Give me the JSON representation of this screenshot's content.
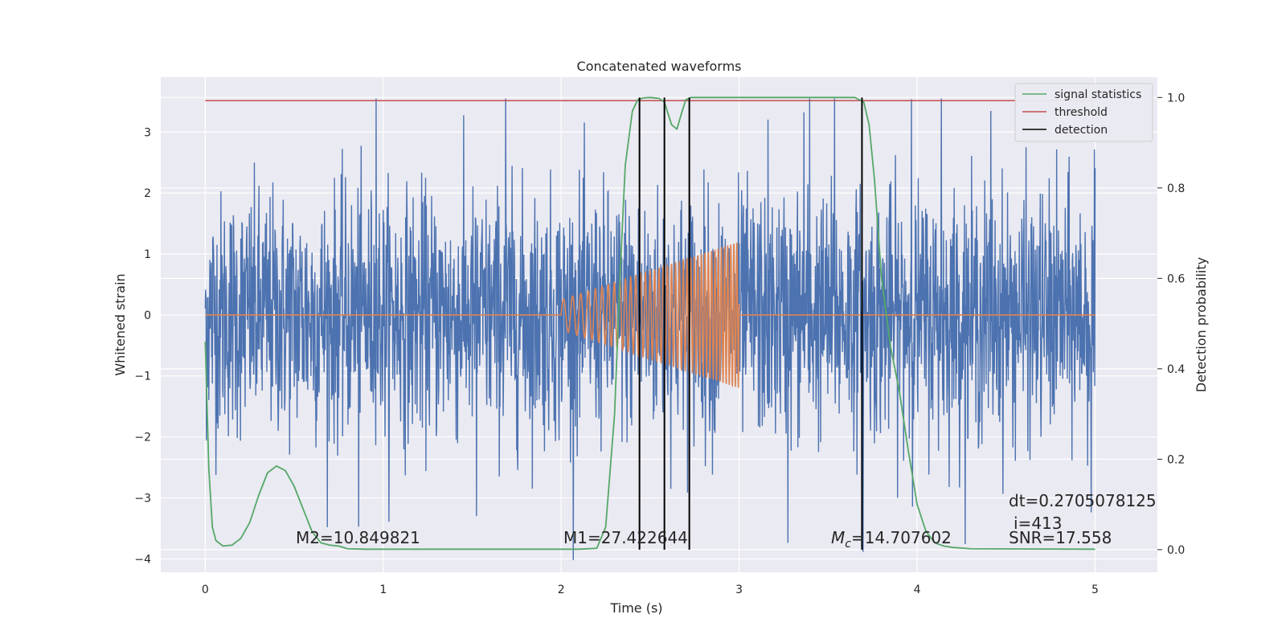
{
  "chart_data": {
    "type": "line",
    "title": "Concatenated waveforms",
    "xlabel": "Time (s)",
    "ylabel": "Whitened strain",
    "y2label": "Detection probability",
    "xlim": [
      -0.25,
      5.35
    ],
    "ylim": [
      -4.22,
      3.9
    ],
    "y2lim": [
      -0.05,
      1.045
    ],
    "xticks": [
      0,
      1,
      2,
      3,
      4,
      5
    ],
    "yticks": [
      -4,
      -3,
      -2,
      -1,
      0,
      1,
      2,
      3
    ],
    "y2ticks": [
      0.0,
      0.2,
      0.4,
      0.6,
      0.8,
      1.0
    ],
    "grid": true,
    "legend_position": "top-right",
    "colors": {
      "noise": "#4c72b0",
      "waveform": "#dd8452",
      "signal_statistics": "#55a868",
      "threshold": "#c44e52",
      "detection": "#000000",
      "plot_bg": "#eaeaf2"
    },
    "series": [
      {
        "name": "signal statistics",
        "axis": "right",
        "x": [
          0.0,
          0.02,
          0.04,
          0.06,
          0.1,
          0.15,
          0.2,
          0.25,
          0.3,
          0.35,
          0.4,
          0.45,
          0.5,
          0.55,
          0.6,
          0.65,
          0.7,
          0.75,
          0.8,
          0.9,
          1.0,
          1.5,
          2.0,
          2.1,
          2.2,
          2.25,
          2.3,
          2.33,
          2.36,
          2.4,
          2.43,
          2.46,
          2.5,
          2.55,
          2.58,
          2.62,
          2.65,
          2.68,
          2.7,
          2.73,
          2.76,
          2.8,
          3.0,
          3.5,
          3.65,
          3.7,
          3.73,
          3.76,
          3.8,
          3.85,
          3.9,
          3.95,
          4.0,
          4.05,
          4.1,
          4.15,
          4.2,
          4.3,
          5.0
        ],
        "y": [
          0.46,
          0.18,
          0.05,
          0.02,
          0.008,
          0.01,
          0.025,
          0.06,
          0.12,
          0.17,
          0.185,
          0.175,
          0.14,
          0.09,
          0.04,
          0.015,
          0.01,
          0.008,
          0.002,
          0.001,
          0.001,
          0.001,
          0.001,
          0.001,
          0.003,
          0.05,
          0.3,
          0.6,
          0.85,
          0.97,
          0.995,
          0.999,
          1.0,
          0.998,
          0.99,
          0.94,
          0.93,
          0.97,
          0.995,
          1.0,
          1.0,
          1.0,
          1.0,
          1.0,
          1.0,
          0.99,
          0.94,
          0.82,
          0.6,
          0.45,
          0.35,
          0.22,
          0.1,
          0.04,
          0.015,
          0.008,
          0.005,
          0.002,
          0.001
        ]
      },
      {
        "name": "threshold",
        "axis": "right",
        "x": [
          0,
          5
        ],
        "y": [
          0.993,
          0.993
        ]
      },
      {
        "name": "detection",
        "axis": "right",
        "type": "vlines",
        "x": [
          2.44,
          2.58,
          2.72,
          3.69
        ],
        "ymin": 0.0,
        "ymax": 1.0
      }
    ],
    "noise": {
      "axis": "left",
      "x_range": [
        0,
        5
      ],
      "amplitude": 1.0,
      "spike_count": 14
    },
    "waveform": {
      "axis": "left",
      "start": 2.0,
      "end": 3.0,
      "start_amplitude": 0.25,
      "end_amplitude": 1.2,
      "start_freq": 18,
      "end_freq": 60
    },
    "legend": [
      "signal statistics",
      "threshold",
      "detection"
    ],
    "annotations": {
      "m2": "M2=10.849821",
      "m1": "M1=27.422644",
      "mc_symbol": "M",
      "mc_subscript": "c",
      "mc_value": "=14.707602",
      "dt": "dt=0.2705078125",
      "i": "i=413",
      "snr": "SNR=17.558"
    }
  }
}
